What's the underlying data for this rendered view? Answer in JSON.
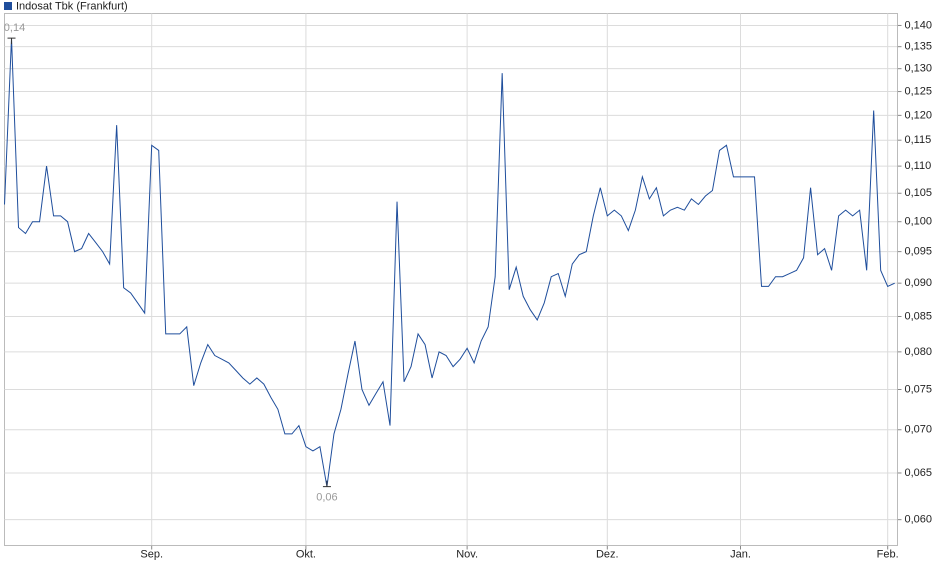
{
  "chart_data": {
    "type": "line",
    "legend": "top-left",
    "log_scale": true,
    "grid": true,
    "series": [
      {
        "name": "Indosat Tbk (Frankfurt)",
        "color": "#1f4e9c",
        "values": [
          0.103,
          0.137,
          0.099,
          0.098,
          0.1,
          0.1,
          0.11,
          0.101,
          0.101,
          0.1,
          0.095,
          0.0955,
          0.098,
          0.0965,
          0.095,
          0.093,
          0.118,
          0.0893,
          0.0885,
          0.087,
          0.0855,
          0.114,
          0.113,
          0.0825,
          0.0825,
          0.0825,
          0.0835,
          0.0755,
          0.0785,
          0.081,
          0.0795,
          0.079,
          0.0785,
          0.0775,
          0.0765,
          0.0757,
          0.0765,
          0.0757,
          0.074,
          0.0725,
          0.0695,
          0.0695,
          0.0705,
          0.068,
          0.0675,
          0.068,
          0.0635,
          0.0695,
          0.0725,
          0.077,
          0.0815,
          0.075,
          0.073,
          0.0745,
          0.076,
          0.0705,
          0.1035,
          0.076,
          0.078,
          0.0825,
          0.081,
          0.0765,
          0.08,
          0.0795,
          0.078,
          0.079,
          0.0805,
          0.0785,
          0.0815,
          0.0835,
          0.091,
          0.129,
          0.089,
          0.0925,
          0.088,
          0.086,
          0.0845,
          0.087,
          0.091,
          0.0915,
          0.088,
          0.093,
          0.0945,
          0.095,
          0.101,
          0.106,
          0.101,
          0.102,
          0.101,
          0.0985,
          0.102,
          0.108,
          0.104,
          0.106,
          0.101,
          0.102,
          0.1025,
          0.102,
          0.104,
          0.103,
          0.1045,
          0.1055,
          0.113,
          0.114,
          0.108,
          0.108,
          0.108,
          0.108,
          0.0895,
          0.0895,
          0.091,
          0.091,
          0.0915,
          0.092,
          0.094,
          0.106,
          0.0945,
          0.0955,
          0.092,
          0.101,
          0.102,
          0.101,
          0.102,
          0.092,
          0.121,
          0.092,
          0.0895,
          0.09
        ]
      }
    ],
    "annotations": [
      {
        "point": 1,
        "label": "0,14",
        "side": "top"
      },
      {
        "point": 46,
        "label": "0,06",
        "side": "bottom"
      }
    ],
    "xlim": [
      0,
      127.4
    ],
    "xticks": [
      {
        "value": 21,
        "label": "Sep."
      },
      {
        "value": 43,
        "label": "Okt."
      },
      {
        "value": 66,
        "label": "Nov."
      },
      {
        "value": 86,
        "label": "Dez."
      },
      {
        "value": 105,
        "label": "Jan."
      },
      {
        "value": 126,
        "label": "Feb."
      }
    ],
    "ylim": [
      0.0574,
      0.1429
    ],
    "yticks": [
      {
        "value": 0.06,
        "label": "0,060"
      },
      {
        "value": 0.065,
        "label": "0,065"
      },
      {
        "value": 0.07,
        "label": "0,070"
      },
      {
        "value": 0.075,
        "label": "0,075"
      },
      {
        "value": 0.08,
        "label": "0,080"
      },
      {
        "value": 0.085,
        "label": "0,085"
      },
      {
        "value": 0.09,
        "label": "0,090"
      },
      {
        "value": 0.095,
        "label": "0,095"
      },
      {
        "value": 0.1,
        "label": "0,100"
      },
      {
        "value": 0.105,
        "label": "0,105"
      },
      {
        "value": 0.11,
        "label": "0,110"
      },
      {
        "value": 0.115,
        "label": "0,115"
      },
      {
        "value": 0.12,
        "label": "0,120"
      },
      {
        "value": 0.125,
        "label": "0,125"
      },
      {
        "value": 0.13,
        "label": "0,130"
      },
      {
        "value": 0.135,
        "label": "0,135"
      },
      {
        "value": 0.14,
        "label": "0,140"
      }
    ]
  }
}
